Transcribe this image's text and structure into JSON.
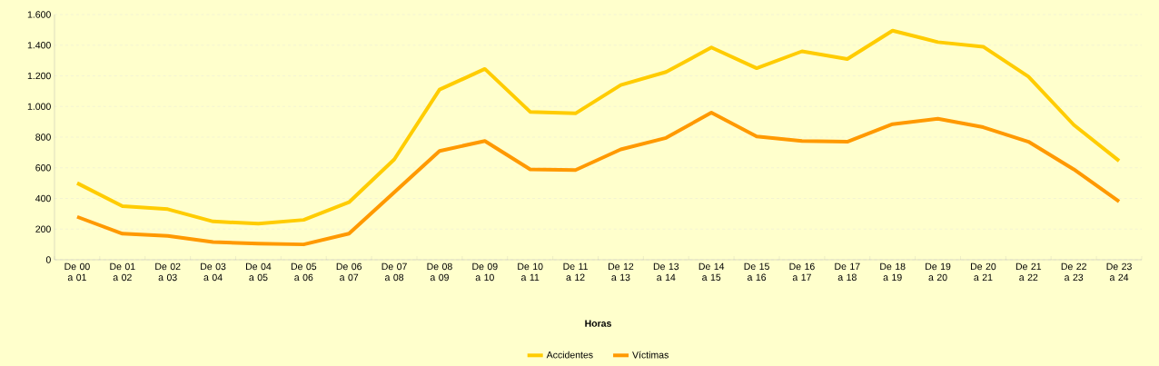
{
  "chart_data": {
    "type": "line",
    "xlabel": "Horas",
    "categories": [
      "De 00 a 01",
      "De 01 a 02",
      "De 02 a 03",
      "De 03 a 04",
      "De 04 a 05",
      "De 05 a 06",
      "De 06 a 07",
      "De 07 a 08",
      "De 08 a 09",
      "De 09 a 10",
      "De 10 a 11",
      "De 11 a 12",
      "De 12 a 13",
      "De 13 a 14",
      "De 14 a 15",
      "De 15 a 16",
      "De 16 a 17",
      "De 17 a 18",
      "De 18 a 19",
      "De 19 a 20",
      "De 20 a 21",
      "De 21 a 22",
      "De 22 a 23",
      "De 23 a 24"
    ],
    "series": [
      {
        "name": "Accidentes",
        "color": "#ffcc00",
        "values": [
          500,
          350,
          330,
          250,
          235,
          260,
          375,
          655,
          1110,
          1245,
          965,
          955,
          1140,
          1225,
          1385,
          1250,
          1360,
          1310,
          1495,
          1420,
          1390,
          1195,
          880,
          645
        ]
      },
      {
        "name": "Víctimas",
        "color": "#ff9900",
        "values": [
          280,
          170,
          155,
          115,
          105,
          100,
          170,
          440,
          710,
          775,
          590,
          585,
          720,
          795,
          960,
          805,
          775,
          770,
          885,
          920,
          865,
          770,
          590,
          380
        ]
      }
    ],
    "ylim": [
      0,
      1600
    ],
    "yticks": [
      0,
      200,
      400,
      600,
      800,
      {
        "value": 1000,
        "label": "1.000"
      },
      {
        "value": 1200,
        "label": "1.200"
      },
      {
        "value": 1400,
        "label": "1.400"
      },
      {
        "value": 1600,
        "label": "1.600"
      }
    ],
    "grid": "y",
    "legend": "bottom",
    "marker": "none",
    "line_style": "solid"
  }
}
